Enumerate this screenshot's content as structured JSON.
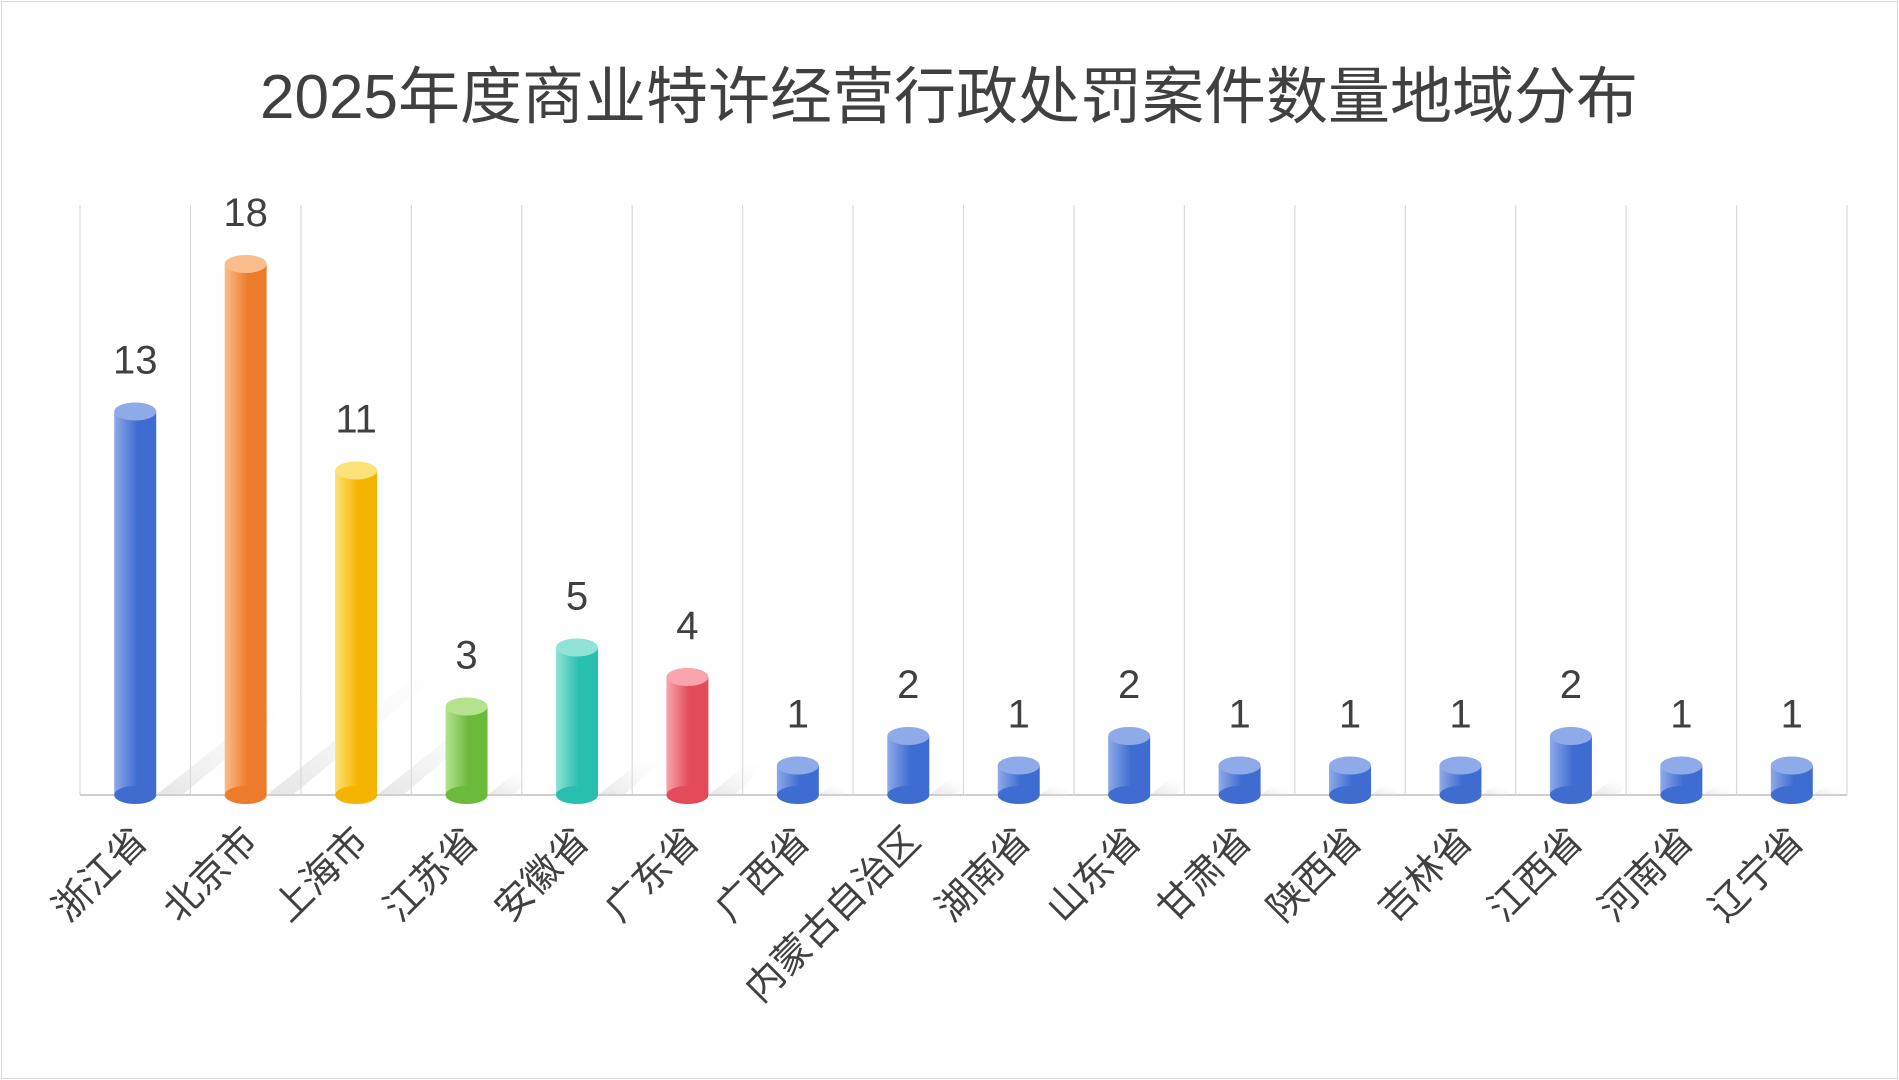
{
  "chart_data": {
    "type": "bar",
    "title": "2025年度商业特许经营行政处罚案件数量地域分布",
    "categories": [
      "浙江省",
      "北京市",
      "上海市",
      "江苏省",
      "安徽省",
      "广东省",
      "广西省",
      "内蒙古自治区",
      "湖南省",
      "山东省",
      "甘肃省",
      "陕西省",
      "吉林省",
      "江西省",
      "河南省",
      "辽宁省"
    ],
    "values": [
      13,
      18,
      11,
      3,
      5,
      4,
      1,
      2,
      1,
      2,
      1,
      1,
      1,
      2,
      1,
      1
    ],
    "ylim": [
      0,
      20
    ],
    "grid": "vertical",
    "legend": "none",
    "colors": {
      "blue": [
        "#8eaae8",
        "#3e6cd1"
      ],
      "orange": [
        "#fbbd8c",
        "#ee7a2c"
      ],
      "yellow": [
        "#fde27a",
        "#f4b400"
      ],
      "green": [
        "#b6e28f",
        "#6cba3c"
      ],
      "teal": [
        "#8fe3d7",
        "#28bfae"
      ],
      "red": [
        "#f8a5ad",
        "#e34a5a"
      ]
    },
    "bar_colors": [
      "blue",
      "orange",
      "yellow",
      "green",
      "teal",
      "red",
      "blue",
      "blue",
      "blue",
      "blue",
      "blue",
      "blue",
      "blue",
      "blue",
      "blue",
      "blue"
    ]
  }
}
